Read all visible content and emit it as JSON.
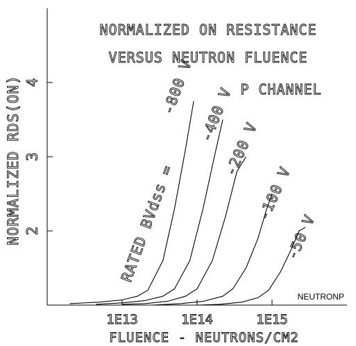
{
  "chart_data": {
    "type": "line",
    "title": [
      "NORMALIZED ON RESISTANCE",
      "VERSUS NEUTRON FLUENCE"
    ],
    "annotation": "P CHANNEL",
    "curve_group_label": "RATED BVdss =",
    "tag": "NEUTRONP",
    "xlabel": "FLUENCE - NEUTRONS/CM2",
    "ylabel": "NORMALIZED RDS(ON)",
    "x_scale": "log",
    "xlim": [
      1000000000000.0,
      1e+16
    ],
    "ylim": [
      1,
      5
    ],
    "x_ticks": [
      {
        "value": 10000000000000.0,
        "label": "1E13"
      },
      {
        "value": 100000000000000.0,
        "label": "1E14"
      },
      {
        "value": 1000000000000000.0,
        "label": "1E15"
      }
    ],
    "y_ticks": [
      {
        "value": 2,
        "label": "2"
      },
      {
        "value": 3,
        "label": "3"
      },
      {
        "value": 4,
        "label": "4"
      }
    ],
    "grid": false,
    "legend": "none",
    "series": [
      {
        "label": "-800 V",
        "points": [
          [
            2000000000000.0,
            1.02
          ],
          [
            5000000000000.0,
            1.04
          ],
          [
            10000000000000.0,
            1.07
          ],
          [
            16000000000000.0,
            1.12
          ],
          [
            22000000000000.0,
            1.2
          ],
          [
            35000000000000.0,
            1.6
          ],
          [
            50000000000000.0,
            2.3
          ],
          [
            70000000000000.0,
            3.1
          ],
          [
            90000000000000.0,
            3.75
          ]
        ]
      },
      {
        "label": "-400 V",
        "points": [
          [
            4500000000000.0,
            1.01
          ],
          [
            10000000000000.0,
            1.03
          ],
          [
            20000000000000.0,
            1.06
          ],
          [
            35000000000000.0,
            1.12
          ],
          [
            50000000000000.0,
            1.22
          ],
          [
            80000000000000.0,
            1.6
          ],
          [
            120000000000000.0,
            2.3
          ],
          [
            170000000000000.0,
            3.0
          ],
          [
            220000000000000.0,
            3.5
          ]
        ]
      },
      {
        "label": "-200 V",
        "points": [
          [
            10000000000000.0,
            1.01
          ],
          [
            20000000000000.0,
            1.02
          ],
          [
            40000000000000.0,
            1.05
          ],
          [
            70000000000000.0,
            1.12
          ],
          [
            100000000000000.0,
            1.22
          ],
          [
            160000000000000.0,
            1.6
          ],
          [
            240000000000000.0,
            2.2
          ],
          [
            340000000000000.0,
            2.8
          ],
          [
            450000000000000.0,
            3.0
          ]
        ]
      },
      {
        "label": "-100 V",
        "points": [
          [
            25000000000000.0,
            1.0
          ],
          [
            60000000000000.0,
            1.02
          ],
          [
            120000000000000.0,
            1.05
          ],
          [
            220000000000000.0,
            1.12
          ],
          [
            300000000000000.0,
            1.22
          ],
          [
            450000000000000.0,
            1.5
          ],
          [
            650000000000000.0,
            1.9
          ],
          [
            850000000000000.0,
            2.3
          ],
          [
            1000000000000000.0,
            2.5
          ]
        ]
      },
      {
        "label": "-50 V",
        "points": [
          [
            100000000000000.0,
            1.0
          ],
          [
            200000000000000.0,
            1.01
          ],
          [
            400000000000000.0,
            1.04
          ],
          [
            650000000000000.0,
            1.1
          ],
          [
            900000000000000.0,
            1.2
          ],
          [
            1300000000000000.0,
            1.45
          ],
          [
            1800000000000000.0,
            1.75
          ],
          [
            2300000000000000.0,
            2.0
          ],
          [
            2800000000000000.0,
            2.05
          ]
        ]
      }
    ]
  }
}
